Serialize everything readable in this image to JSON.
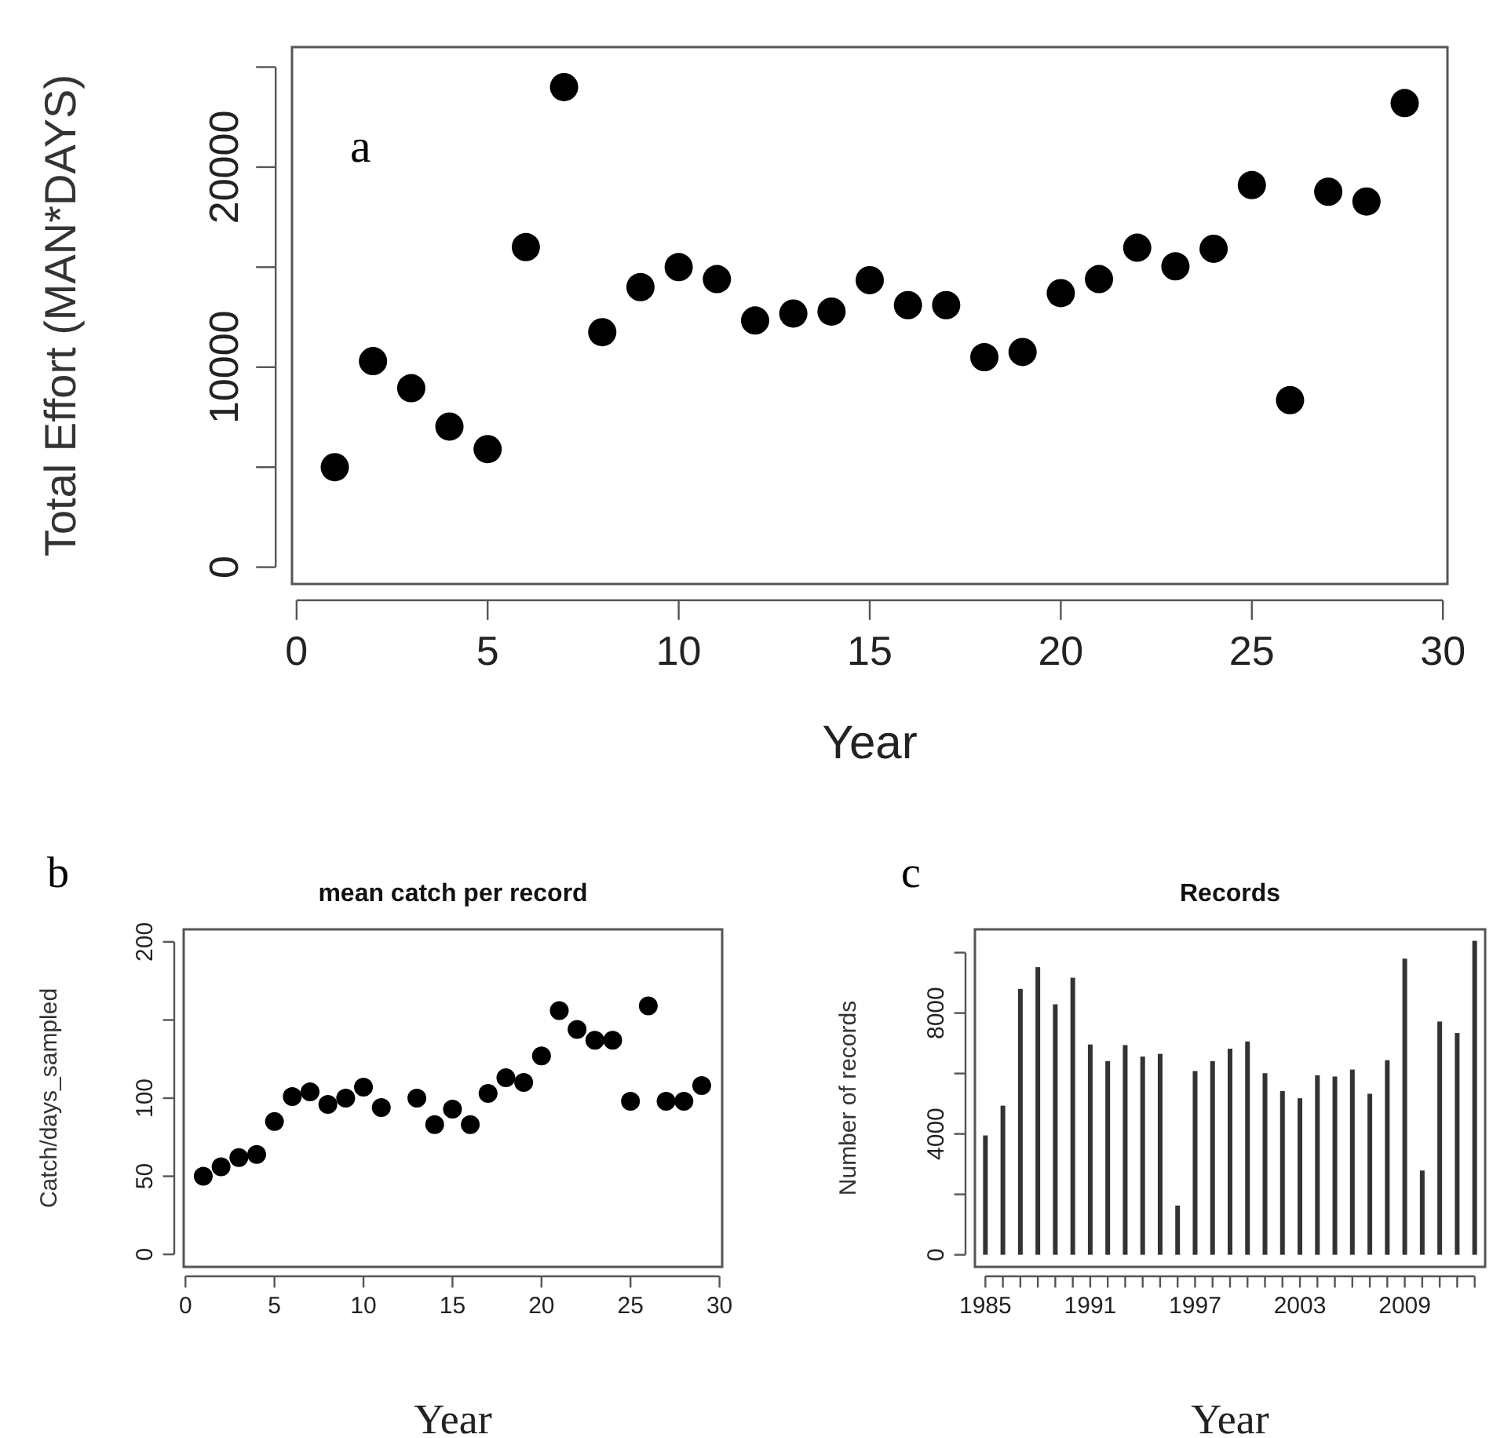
{
  "chart_data": [
    {
      "type": "scatter",
      "xlabel": "Year",
      "ylabel": "Total Effort (MAN*DAYS)",
      "annotations": [
        "a"
      ],
      "marker": "circle",
      "x": [
        1,
        2,
        3,
        4,
        5,
        6,
        7,
        8,
        9,
        10,
        11,
        12,
        13,
        14,
        15,
        16,
        17,
        18,
        19,
        20,
        21,
        22,
        23,
        24,
        25,
        26,
        27,
        28,
        29
      ],
      "series": [
        {
          "color": "#000000",
          "values": [
            5000,
            10300,
            8950,
            7030,
            5900,
            16000,
            24000,
            11750,
            14000,
            15000,
            14400,
            12330,
            12680,
            12780,
            14350,
            13100,
            13100,
            10500,
            10760,
            13700,
            14400,
            15970,
            15040,
            15920,
            19100,
            8350,
            18770,
            18280,
            23200
          ]
        }
      ],
      "xlim": [
        -0.12,
        30.12
      ],
      "xticks": [
        0,
        5,
        10,
        15,
        20,
        25,
        30
      ],
      "ylim": [
        -840,
        26000
      ],
      "yticks": [
        0,
        {
          "value": 5000,
          "label": null
        },
        10000,
        {
          "value": 15000,
          "label": null
        },
        20000,
        {
          "value": 25000,
          "label": null
        }
      ]
    },
    {
      "type": "scatter",
      "title": "mean catch per record",
      "xlabel": "Year",
      "ylabel": "Catch/days_sampled",
      "annotations": [
        "b"
      ],
      "marker": "circle",
      "x": [
        1,
        2,
        3,
        4,
        5,
        6,
        7,
        8,
        9,
        10,
        11,
        13,
        14,
        15,
        16,
        17,
        18,
        19,
        20,
        21,
        22,
        23,
        24,
        25,
        26,
        27,
        28,
        29
      ],
      "series": [
        {
          "color": "#000000",
          "values": [
            50,
            56,
            62,
            64,
            85,
            101,
            104,
            96,
            100,
            107,
            94,
            100,
            83,
            93,
            83,
            103,
            113,
            110,
            127,
            156,
            144,
            137,
            137,
            98,
            159,
            98,
            98,
            108
          ]
        }
      ],
      "xlim": [
        -0.1,
        30.15
      ],
      "xticks": [
        0,
        5,
        10,
        15,
        20,
        25,
        30
      ],
      "ylim": [
        -8,
        208
      ],
      "yticks": [
        0,
        50,
        100,
        {
          "value": 150,
          "label": null
        },
        200
      ]
    },
    {
      "type": "bar",
      "title": "Records",
      "xlabel": "Year",
      "ylabel": "Number of records",
      "annotations": [
        "c"
      ],
      "categories": [
        "1985",
        null,
        null,
        null,
        null,
        null,
        "1991",
        null,
        null,
        null,
        null,
        null,
        "1997",
        null,
        null,
        null,
        null,
        null,
        "2003",
        null,
        null,
        null,
        null,
        null,
        "2009",
        null,
        null,
        null,
        null
      ],
      "series": [
        {
          "color": "#333333",
          "values": [
            3950,
            4935,
            8800,
            9520,
            8290,
            9170,
            6960,
            6410,
            6940,
            6560,
            6650,
            1630,
            6080,
            6410,
            6820,
            7060,
            6010,
            5420,
            5180,
            5940,
            5900,
            6130,
            5330,
            6440,
            9800,
            2790,
            7720,
            7340,
            10390
          ]
        }
      ],
      "ylim": [
        -400,
        10770
      ],
      "yticks": [
        0,
        {
          "value": 2000,
          "label": null
        },
        4000,
        {
          "value": 6000,
          "label": null
        },
        8000,
        {
          "value": 10000,
          "label": null
        }
      ]
    }
  ]
}
